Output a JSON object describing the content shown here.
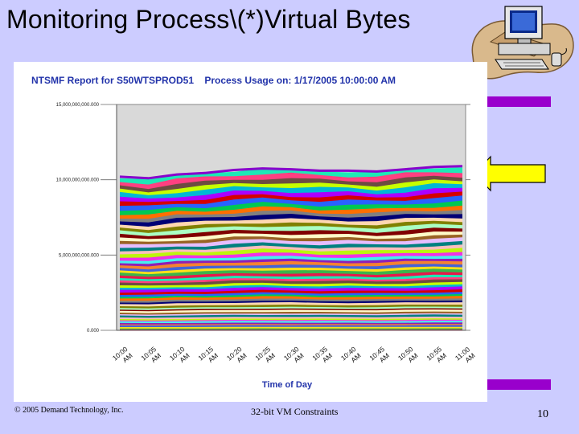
{
  "slide": {
    "title": "Monitoring Process\\(*)Virtual Bytes",
    "footer_left": "© 2005 Demand Technology, Inc.",
    "footer_center": "32-bit VM Constraints",
    "page_number": "10",
    "accent_color": "#9900cc",
    "arrow_color": "#ffff00",
    "background_color": "#ccccff"
  },
  "icons": {
    "clipart": "computer-desk-clipart-icon",
    "arrow": "left-arrow-icon"
  },
  "chart_data": {
    "type": "area",
    "stacked": true,
    "title": "NTSMF Report for S50WTSPROD51    Process Usage on: 1/17/2005 10:00:00 AM",
    "xlabel": "Time of Day",
    "ylabel": "",
    "ylim": [
      0,
      15000000000
    ],
    "yticks": [
      0,
      5000000000,
      10000000000,
      15000000000
    ],
    "ytick_labels": [
      "0.000",
      "5,000,000,000.000",
      "10,000,000,000.000",
      "15,000,000,000.000"
    ],
    "xtick_labels": [
      "10:00 AM",
      "10:05 AM",
      "10:10 AM",
      "10:15 AM",
      "10:20 AM",
      "10:25 AM",
      "10:30 AM",
      "10:35 AM",
      "10:40 AM",
      "10:45 AM",
      "10:50 AM",
      "10:55 AM",
      "11:00 AM"
    ],
    "x": [
      "10:00",
      "10:05",
      "10:10",
      "10:15",
      "10:20",
      "10:25",
      "10:30",
      "10:35",
      "10:40",
      "10:45",
      "10:50",
      "10:55",
      "11:00"
    ],
    "series_count": 60,
    "total": [
      10200000000,
      10100000000,
      10350000000,
      10450000000,
      10650000000,
      10750000000,
      10700000000,
      10600000000,
      10600000000,
      10550000000,
      10700000000,
      10850000000,
      10900000000
    ],
    "note": "Total virtual bytes summed across many process instances (stacked, multicolored); individual series not labeled"
  }
}
